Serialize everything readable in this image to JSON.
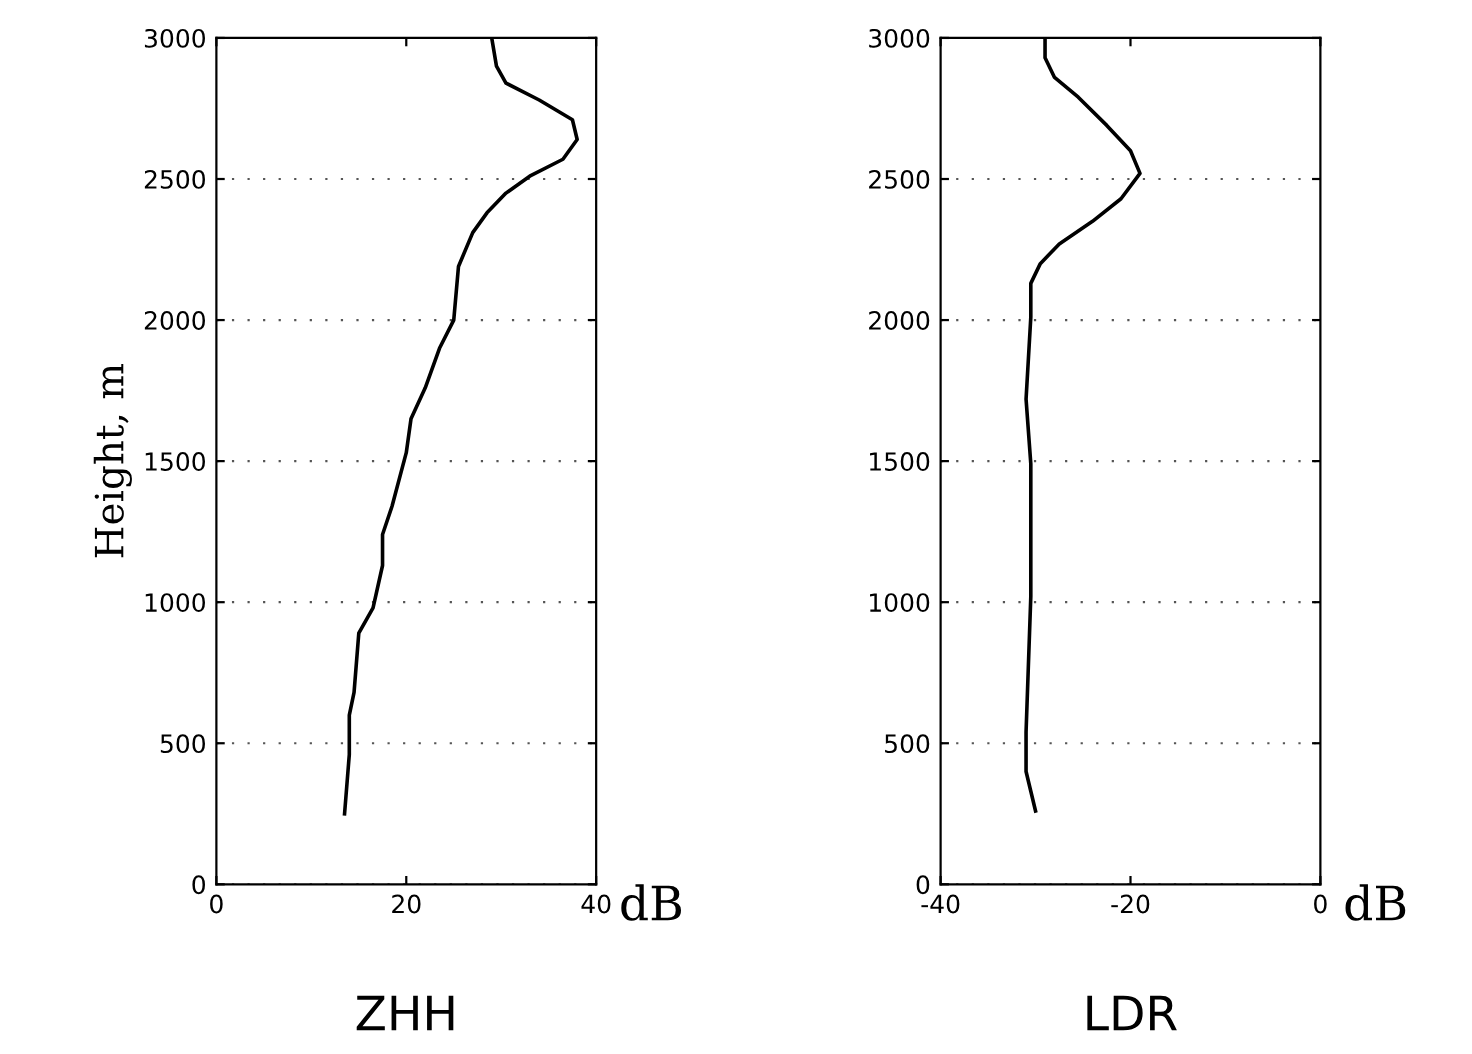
{
  "chart_data": [
    {
      "type": "line",
      "title": "ZHH",
      "xlabel": "dB",
      "ylabel": "Height, m",
      "xlim": [
        0,
        40
      ],
      "xticks": [
        0,
        20,
        40
      ],
      "ylim": [
        0,
        3000
      ],
      "yticks": [
        0,
        500,
        1000,
        1500,
        2000,
        2500,
        3000
      ],
      "grid": "y",
      "series": [
        {
          "color": "#000000",
          "x": [
            13.5,
            14,
            14,
            14.5,
            15,
            16.5,
            17.5,
            17.5,
            18.5,
            20,
            20.5,
            22,
            23.5,
            25,
            25.5,
            27,
            28.5,
            30.5,
            33,
            36.5,
            38,
            37.5,
            34,
            30.5,
            29.5,
            29
          ],
          "values": [
            250,
            460,
            600,
            680,
            890,
            980,
            1130,
            1240,
            1340,
            1530,
            1650,
            1760,
            1900,
            2000,
            2190,
            2310,
            2380,
            2450,
            2510,
            2570,
            2640,
            2710,
            2780,
            2840,
            2900,
            3000
          ]
        }
      ]
    },
    {
      "type": "line",
      "title": "LDR",
      "xlabel": "dB",
      "xlim": [
        -40,
        0
      ],
      "xticks": [
        -40,
        -20,
        0
      ],
      "ylim": [
        0,
        3000
      ],
      "yticks": [
        0,
        500,
        1000,
        1500,
        2000,
        2500,
        3000
      ],
      "grid": "y",
      "series": [
        {
          "color": "#000000",
          "x": [
            -30,
            -30.5,
            -31,
            -31,
            -30.5,
            -30.5,
            -31,
            -30.5,
            -30.5,
            -29.5,
            -27.5,
            -24,
            -21,
            -19,
            -20,
            -22.5,
            -25.5,
            -28,
            -29,
            -29
          ],
          "values": [
            260,
            330,
            400,
            540,
            1020,
            1490,
            1720,
            2010,
            2130,
            2200,
            2270,
            2350,
            2430,
            2520,
            2600,
            2690,
            2790,
            2860,
            2930,
            3000
          ]
        }
      ]
    }
  ]
}
